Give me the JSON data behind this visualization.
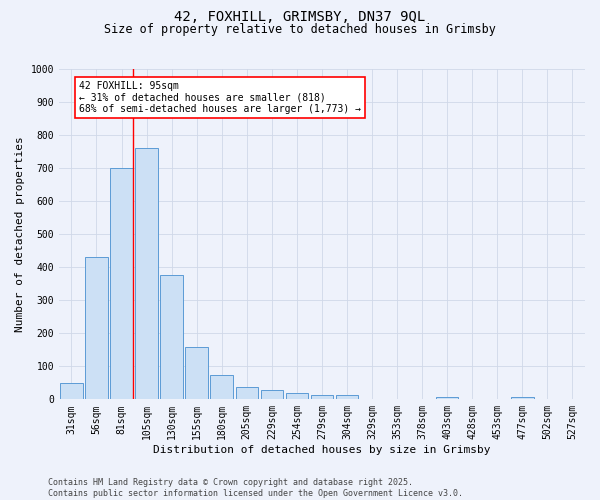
{
  "title1": "42, FOXHILL, GRIMSBY, DN37 9QL",
  "title2": "Size of property relative to detached houses in Grimsby",
  "xlabel": "Distribution of detached houses by size in Grimsby",
  "ylabel": "Number of detached properties",
  "bar_labels": [
    "31sqm",
    "56sqm",
    "81sqm",
    "105sqm",
    "130sqm",
    "155sqm",
    "180sqm",
    "205sqm",
    "229sqm",
    "254sqm",
    "279sqm",
    "304sqm",
    "329sqm",
    "353sqm",
    "378sqm",
    "403sqm",
    "428sqm",
    "453sqm",
    "477sqm",
    "502sqm",
    "527sqm"
  ],
  "bar_values": [
    50,
    430,
    700,
    760,
    375,
    158,
    75,
    37,
    28,
    18,
    13,
    12,
    0,
    0,
    0,
    8,
    0,
    0,
    8,
    0,
    0
  ],
  "bar_color": "#cce0f5",
  "bar_edge_color": "#5b9bd5",
  "property_line_color": "red",
  "annotation_text": "42 FOXHILL: 95sqm\n← 31% of detached houses are smaller (818)\n68% of semi-detached houses are larger (1,773) →",
  "ylim": [
    0,
    1000
  ],
  "yticks": [
    0,
    100,
    200,
    300,
    400,
    500,
    600,
    700,
    800,
    900,
    1000
  ],
  "grid_color": "#d0d8e8",
  "background_color": "#eef2fb",
  "footer_text": "Contains HM Land Registry data © Crown copyright and database right 2025.\nContains public sector information licensed under the Open Government Licence v3.0.",
  "title1_fontsize": 10,
  "title2_fontsize": 8.5,
  "axis_label_fontsize": 8,
  "tick_fontsize": 7,
  "footer_fontsize": 6
}
